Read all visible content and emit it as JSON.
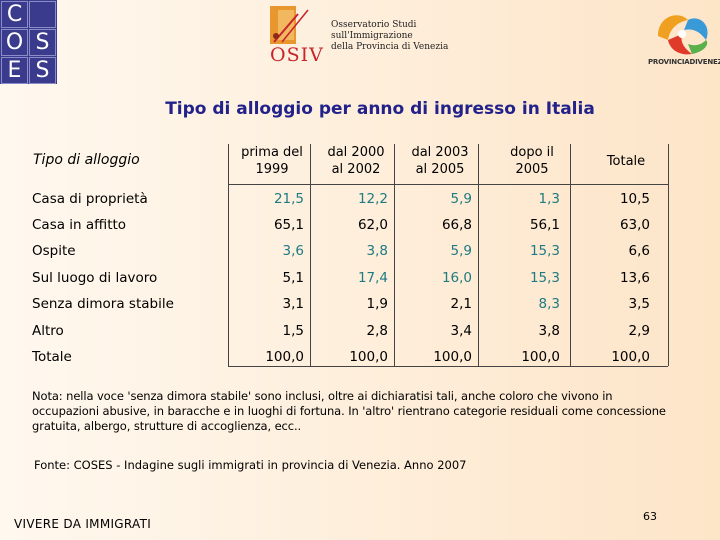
{
  "logos": {
    "coses_letters": [
      "C",
      "O",
      "S",
      "E",
      "S"
    ],
    "osiv_mark": "OSIV",
    "osiv_lines": [
      "Osservatorio Studi",
      "sull'Immigrazione",
      "della Provincia di Venezia"
    ],
    "provincia_text": "PROVINCIADIVENEZIA"
  },
  "title": "Tipo di alloggio per anno di ingresso in Italia",
  "table": {
    "row_header": "Tipo di alloggio",
    "columns": [
      {
        "line1": "prima del",
        "line2": "1999"
      },
      {
        "line1": "dal 2000",
        "line2": "al 2002"
      },
      {
        "line1": "dal 2003",
        "line2": "al 2005"
      },
      {
        "line1": "dopo il",
        "line2": "2005"
      },
      {
        "line1": "Totale",
        "line2": ""
      }
    ],
    "rows": [
      {
        "label": "Casa di proprietà",
        "values": [
          "21,5",
          "12,2",
          "5,9",
          "1,3",
          "10,5"
        ]
      },
      {
        "label": "Casa in affitto",
        "values": [
          "65,1",
          "62,0",
          "66,8",
          "56,1",
          "63,0"
        ]
      },
      {
        "label": "Ospite",
        "values": [
          "3,6",
          "3,8",
          "5,9",
          "15,3",
          "6,6"
        ]
      },
      {
        "label": "Sul luogo di lavoro",
        "values": [
          "5,1",
          "17,4",
          "16,0",
          "15,3",
          "13,6"
        ]
      },
      {
        "label": "Senza dimora stabile",
        "values": [
          "3,1",
          "1,9",
          "2,1",
          "8,3",
          "3,5"
        ]
      },
      {
        "label": "Altro",
        "values": [
          "1,5",
          "2,8",
          "3,4",
          "3,8",
          "2,9"
        ]
      },
      {
        "label": "Totale",
        "values": [
          "100,0",
          "100,0",
          "100,0",
          "100,0",
          "100,0"
        ]
      }
    ]
  },
  "note": "Nota: nella voce 'senza dimora stabile' sono inclusi, oltre ai dichiaratisi tali, anche coloro che vivono in occupazioni abusive, in baracche e in luoghi di fortuna. In 'altro' rientrano categorie residuali come concessione gratuita, albergo, strutture di accoglienza, ecc..",
  "source": "Fonte: COSES - Indagine sugli immigrati in provincia di Venezia. Anno 2007",
  "footer": "VIVERE DA IMMIGRATI",
  "page_number": "63",
  "colors": {
    "title": "#22228a",
    "teal": "#1f7a82",
    "coses_blue": "#3b3b8e"
  }
}
